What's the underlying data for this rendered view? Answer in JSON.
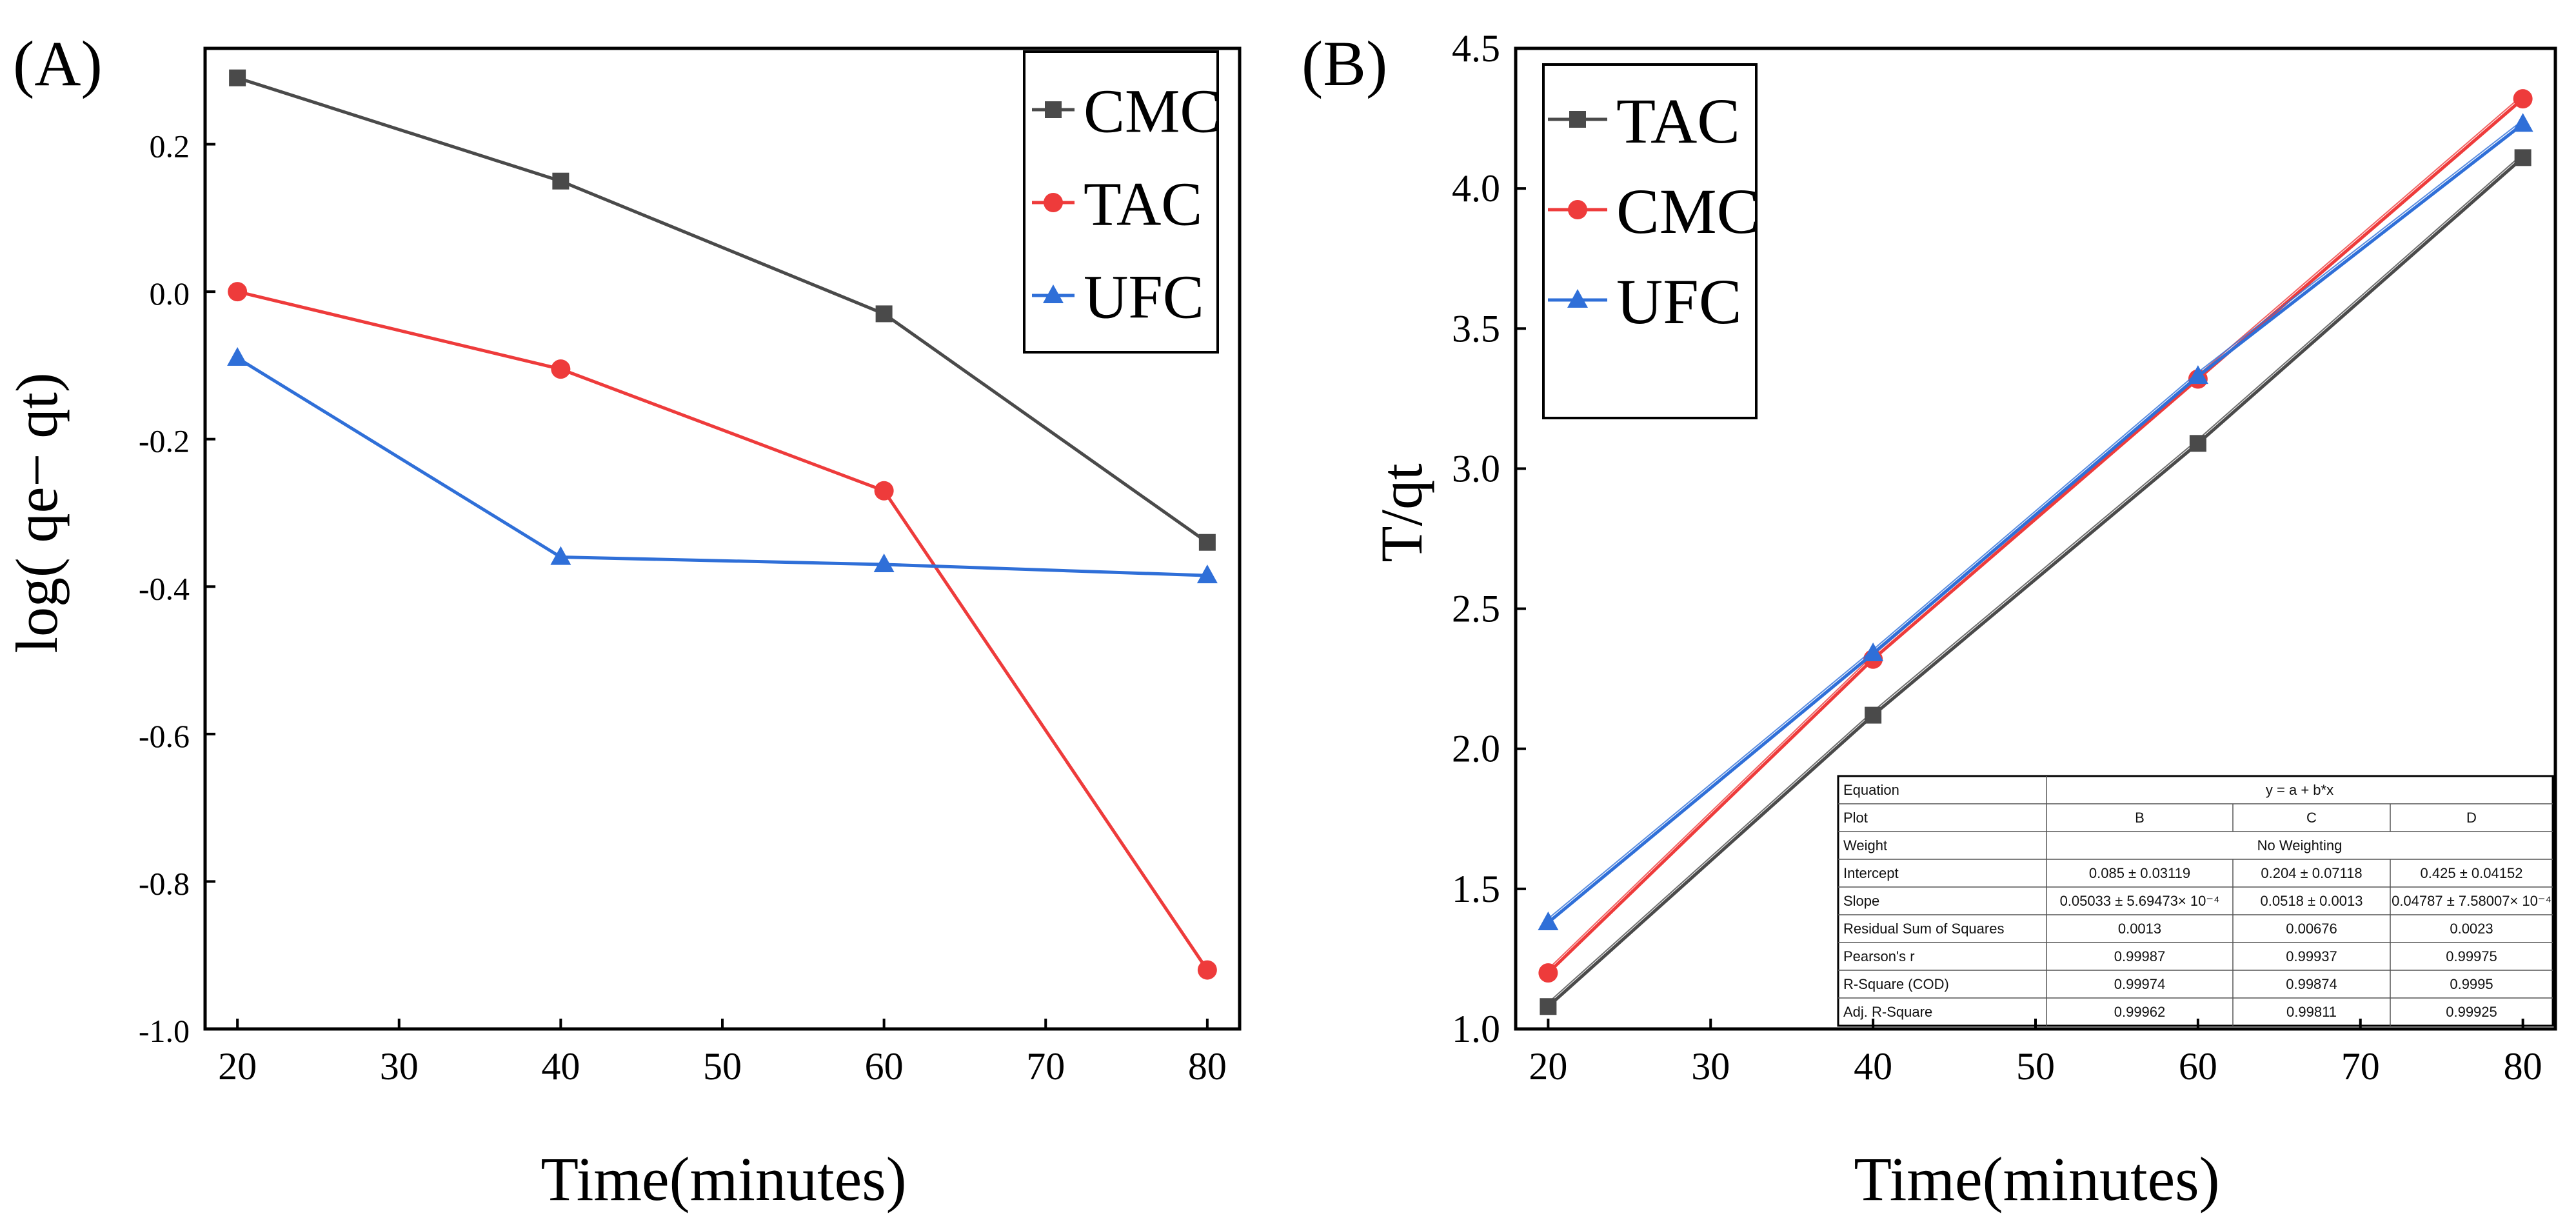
{
  "colors": {
    "CMC": "#4a4a4a",
    "TAC": "#ee3b3b",
    "UFC": "#2f6fd8",
    "TAC_B": "#4a4a4a",
    "CMC_B": "#ee3b3b",
    "UFC_B": "#2f6fd8"
  },
  "chart_data": [
    {
      "type": "line",
      "panel_label": "(A)",
      "xlabel": "Time(minutes)",
      "ylabel": "log( qe− qt)",
      "xlim": [
        18,
        82
      ],
      "ylim": [
        -1.0,
        0.33
      ],
      "xticks": [
        "20",
        "30",
        "40",
        "50",
        "60",
        "70",
        "80"
      ],
      "yticks": [
        "0.2",
        "0.0",
        "-0.2",
        "-0.4",
        "-0.6",
        "-0.8",
        "-1.0"
      ],
      "x": [
        20,
        40,
        60,
        80
      ],
      "legend_position": "top-right",
      "series": [
        {
          "name": "CMC",
          "marker": "square",
          "values": [
            0.29,
            0.15,
            -0.03,
            -0.34
          ]
        },
        {
          "name": "TAC",
          "marker": "circle",
          "values": [
            0.0,
            -0.105,
            -0.27,
            -0.92
          ]
        },
        {
          "name": "UFC",
          "marker": "triangle",
          "values": [
            -0.09,
            -0.36,
            -0.37,
            -0.385
          ]
        }
      ]
    },
    {
      "type": "line",
      "panel_label": "(B)",
      "xlabel": "Time(minutes)",
      "ylabel": "T/qt",
      "xlim": [
        18,
        82
      ],
      "ylim": [
        1.0,
        4.5
      ],
      "xticks": [
        "20",
        "30",
        "40",
        "50",
        "60",
        "70",
        "80"
      ],
      "yticks": [
        "4.5",
        "4.0",
        "3.5",
        "3.0",
        "2.5",
        "2.0",
        "1.5",
        "1.0"
      ],
      "x": [
        20,
        40,
        60,
        80
      ],
      "legend_position": "top-left",
      "series": [
        {
          "name": "TAC",
          "marker": "square",
          "values": [
            1.08,
            2.12,
            3.09,
            4.11
          ]
        },
        {
          "name": "CMC",
          "marker": "circle",
          "values": [
            1.2,
            2.32,
            3.32,
            4.32
          ]
        },
        {
          "name": "UFC",
          "marker": "triangle",
          "values": [
            1.38,
            2.34,
            3.33,
            4.23
          ]
        }
      ],
      "fit_table": {
        "rows": [
          [
            "Equation",
            "y = a + b*x"
          ],
          [
            "Plot",
            "B",
            "C",
            "D"
          ],
          [
            "Weight",
            "No Weighting"
          ],
          [
            "Intercept",
            "0.085 ± 0.03119",
            "0.204 ± 0.07118",
            "0.425 ± 0.04152"
          ],
          [
            "Slope",
            "0.05033 ± 5.69473× 10⁻⁴",
            "0.0518 ± 0.0013",
            "0.04787 ± 7.58007× 10⁻⁴"
          ],
          [
            "Residual Sum of Squares",
            "0.0013",
            "0.00676",
            "0.0023"
          ],
          [
            "Pearson's r",
            "0.99987",
            "0.99937",
            "0.99975"
          ],
          [
            "R-Square (COD)",
            "0.99974",
            "0.99874",
            "0.9995"
          ],
          [
            "Adj. R-Square",
            "0.99962",
            "0.99811",
            "0.99925"
          ]
        ]
      }
    }
  ]
}
